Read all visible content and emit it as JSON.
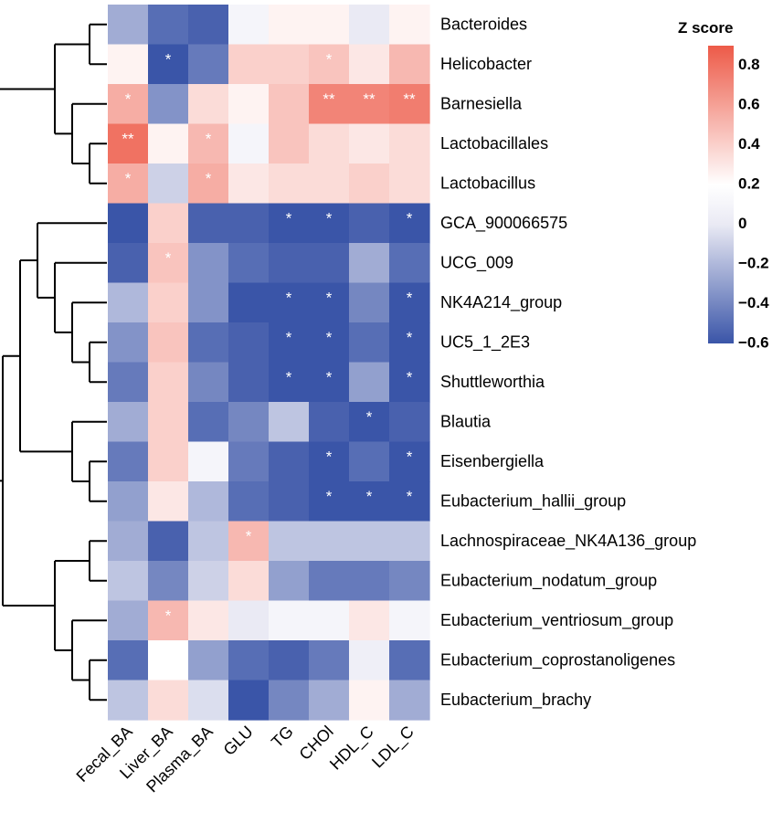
{
  "chart_data": {
    "type": "heatmap",
    "columns": [
      "Fecal_BA",
      "Liver_BA",
      "Plasma_BA",
      "GLU",
      "TG",
      "CHOl",
      "HDL_C",
      "LDL_C"
    ],
    "rows": [
      "Bacteroides",
      "Helicobacter",
      "Barnesiella",
      "Lactobacillales",
      "Lactobacillus",
      "GCA_900066575",
      "UCG_009",
      "NK4A214_group",
      "UC5_1_2E3",
      "Shuttleworthia",
      "Blautia",
      "Eisenbergiella",
      "Eubacterium_hallii_group",
      "Lachnospiraceae_NK4A136_group",
      "Eubacterium_nodatum_group",
      "Eubacterium_ventriosum_group",
      "Eubacterium_coprostanoligenes",
      "Eubacterium_brachy"
    ],
    "values": [
      [
        -0.25,
        -0.5,
        -0.55,
        0.1,
        0.25,
        0.25,
        0.0,
        0.25
      ],
      [
        0.25,
        -0.6,
        -0.45,
        0.4,
        0.4,
        0.45,
        0.3,
        0.5
      ],
      [
        0.55,
        -0.35,
        0.35,
        0.25,
        0.45,
        0.72,
        0.72,
        0.75
      ],
      [
        0.8,
        0.25,
        0.5,
        0.1,
        0.45,
        0.35,
        0.3,
        0.35
      ],
      [
        0.55,
        -0.1,
        0.55,
        0.3,
        0.35,
        0.35,
        0.4,
        0.35
      ],
      [
        -0.6,
        0.4,
        -0.55,
        -0.55,
        -0.6,
        -0.6,
        -0.55,
        -0.6
      ],
      [
        -0.55,
        0.45,
        -0.35,
        -0.5,
        -0.55,
        -0.55,
        -0.25,
        -0.5
      ],
      [
        -0.2,
        0.4,
        -0.35,
        -0.6,
        -0.6,
        -0.6,
        -0.4,
        -0.6
      ],
      [
        -0.35,
        0.45,
        -0.5,
        -0.55,
        -0.6,
        -0.6,
        -0.5,
        -0.6
      ],
      [
        -0.45,
        0.4,
        -0.4,
        -0.55,
        -0.6,
        -0.6,
        -0.3,
        -0.6
      ],
      [
        -0.25,
        0.4,
        -0.5,
        -0.4,
        -0.15,
        -0.55,
        -0.6,
        -0.55
      ],
      [
        -0.45,
        0.4,
        0.1,
        -0.45,
        -0.55,
        -0.6,
        -0.5,
        -0.6
      ],
      [
        -0.3,
        0.3,
        -0.2,
        -0.5,
        -0.55,
        -0.6,
        -0.6,
        -0.6
      ],
      [
        -0.25,
        -0.55,
        -0.15,
        0.5,
        -0.15,
        -0.15,
        -0.15,
        -0.15
      ],
      [
        -0.15,
        -0.4,
        -0.1,
        0.35,
        -0.3,
        -0.45,
        -0.45,
        -0.4
      ],
      [
        -0.25,
        0.5,
        0.3,
        0.0,
        0.1,
        0.1,
        0.3,
        0.1
      ],
      [
        -0.5,
        0.2,
        -0.3,
        -0.5,
        -0.55,
        -0.45,
        0.05,
        -0.5
      ],
      [
        -0.15,
        0.35,
        -0.05,
        -0.6,
        -0.4,
        -0.25,
        0.25,
        -0.25
      ]
    ],
    "significance": [
      [
        "",
        "",
        "",
        "",
        "",
        "",
        "",
        ""
      ],
      [
        "",
        "*",
        "",
        "",
        "",
        "*",
        "",
        ""
      ],
      [
        "*",
        "",
        "",
        "",
        "",
        "**",
        "**",
        "**"
      ],
      [
        "**",
        "",
        "*",
        "",
        "",
        "",
        "",
        ""
      ],
      [
        "*",
        "",
        "*",
        "",
        "",
        "",
        "",
        ""
      ],
      [
        "",
        "",
        "",
        "",
        "*",
        "*",
        "",
        "*"
      ],
      [
        "",
        "*",
        "",
        "",
        "",
        "",
        "",
        ""
      ],
      [
        "",
        "",
        "",
        "",
        "*",
        "*",
        "",
        "*"
      ],
      [
        "",
        "",
        "",
        "",
        "*",
        "*",
        "",
        "*"
      ],
      [
        "",
        "",
        "",
        "",
        "*",
        "*",
        "",
        "*"
      ],
      [
        "",
        "",
        "",
        "",
        "",
        "",
        "*",
        ""
      ],
      [
        "",
        "",
        "",
        "",
        "",
        "*",
        "",
        "*"
      ],
      [
        "",
        "",
        "",
        "",
        "",
        "*",
        "*",
        "*"
      ],
      [
        "",
        "",
        "",
        "*",
        "",
        "",
        "",
        ""
      ],
      [
        "",
        "",
        "",
        "",
        "",
        "",
        "",
        ""
      ],
      [
        "",
        "*",
        "",
        "",
        "",
        "",
        "",
        ""
      ],
      [
        "",
        "",
        "",
        "",
        "",
        "",
        "",
        ""
      ],
      [
        "",
        "",
        "",
        "",
        "",
        "",
        "",
        ""
      ]
    ],
    "dendrogram_merges": [
      [
        0,
        1
      ],
      [
        3,
        4
      ],
      [
        2,
        -2
      ],
      [
        -1,
        -3
      ],
      [
        8,
        9
      ],
      [
        7,
        -5
      ],
      [
        6,
        -6
      ],
      [
        5,
        -7
      ],
      [
        11,
        12
      ],
      [
        10,
        -9
      ],
      [
        -8,
        -10
      ],
      [
        13,
        14
      ],
      [
        16,
        17
      ],
      [
        15,
        -13
      ],
      [
        -12,
        -14
      ],
      [
        -11,
        -15
      ],
      [
        -4,
        -16
      ]
    ],
    "legend": {
      "title": "Z  score",
      "min": -0.6,
      "max": 0.9,
      "ticks": [
        "0.8",
        "0.6",
        "0.4",
        "0.2",
        "0",
        "−0.2",
        "−0.4",
        "−0.6"
      ],
      "tick_values": [
        0.8,
        0.6,
        0.4,
        0.2,
        0,
        -0.2,
        -0.4,
        -0.6
      ]
    },
    "colors": {
      "low": "#3a55a8",
      "mid_low": "#eaeaf4",
      "mid": "#ffffff",
      "high": "#ed5a48",
      "sig_star": "#ffffff"
    }
  }
}
